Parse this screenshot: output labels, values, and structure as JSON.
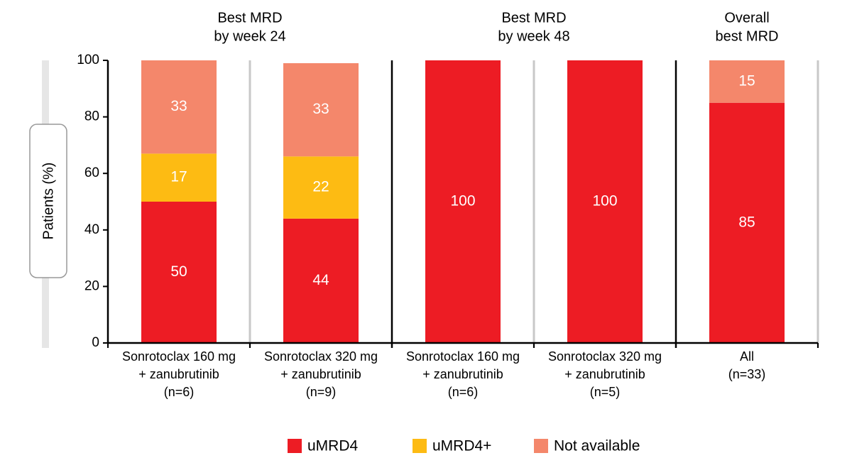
{
  "chart_data": {
    "type": "stacked-bar",
    "y_label": "Patients (%)",
    "group_labels": [
      [
        "Best MRD",
        "by week 24"
      ],
      [
        "Best MRD",
        "by week 48"
      ],
      [
        "Overall",
        "best MRD"
      ]
    ],
    "categories": [
      [
        "Sonrotoclax 160 mg",
        "+ zanubrutinib",
        "(n=6)"
      ],
      [
        "Sonrotoclax 320 mg",
        "+ zanubrutinib",
        "(n=9)"
      ],
      [
        "Sonrotoclax 160 mg",
        "+ zanubrutinib",
        "(n=6)"
      ],
      [
        "Sonrotoclax 320 mg",
        "+ zanubrutinib",
        "(n=5)"
      ],
      [
        "All",
        "(n=33)"
      ]
    ],
    "series": [
      {
        "name": "uMRD4",
        "color": "#ed1c24",
        "values": [
          50,
          44,
          100,
          100,
          85
        ]
      },
      {
        "name": "uMRD4+",
        "color": "#fdbb13",
        "values": [
          17,
          22,
          null,
          null,
          null
        ]
      },
      {
        "name": "Not available",
        "color": "#f4876b",
        "values": [
          33,
          33,
          null,
          null,
          15
        ]
      }
    ],
    "ylim": [
      0,
      100
    ],
    "yticks": [
      0,
      20,
      40,
      60,
      80,
      100
    ]
  }
}
